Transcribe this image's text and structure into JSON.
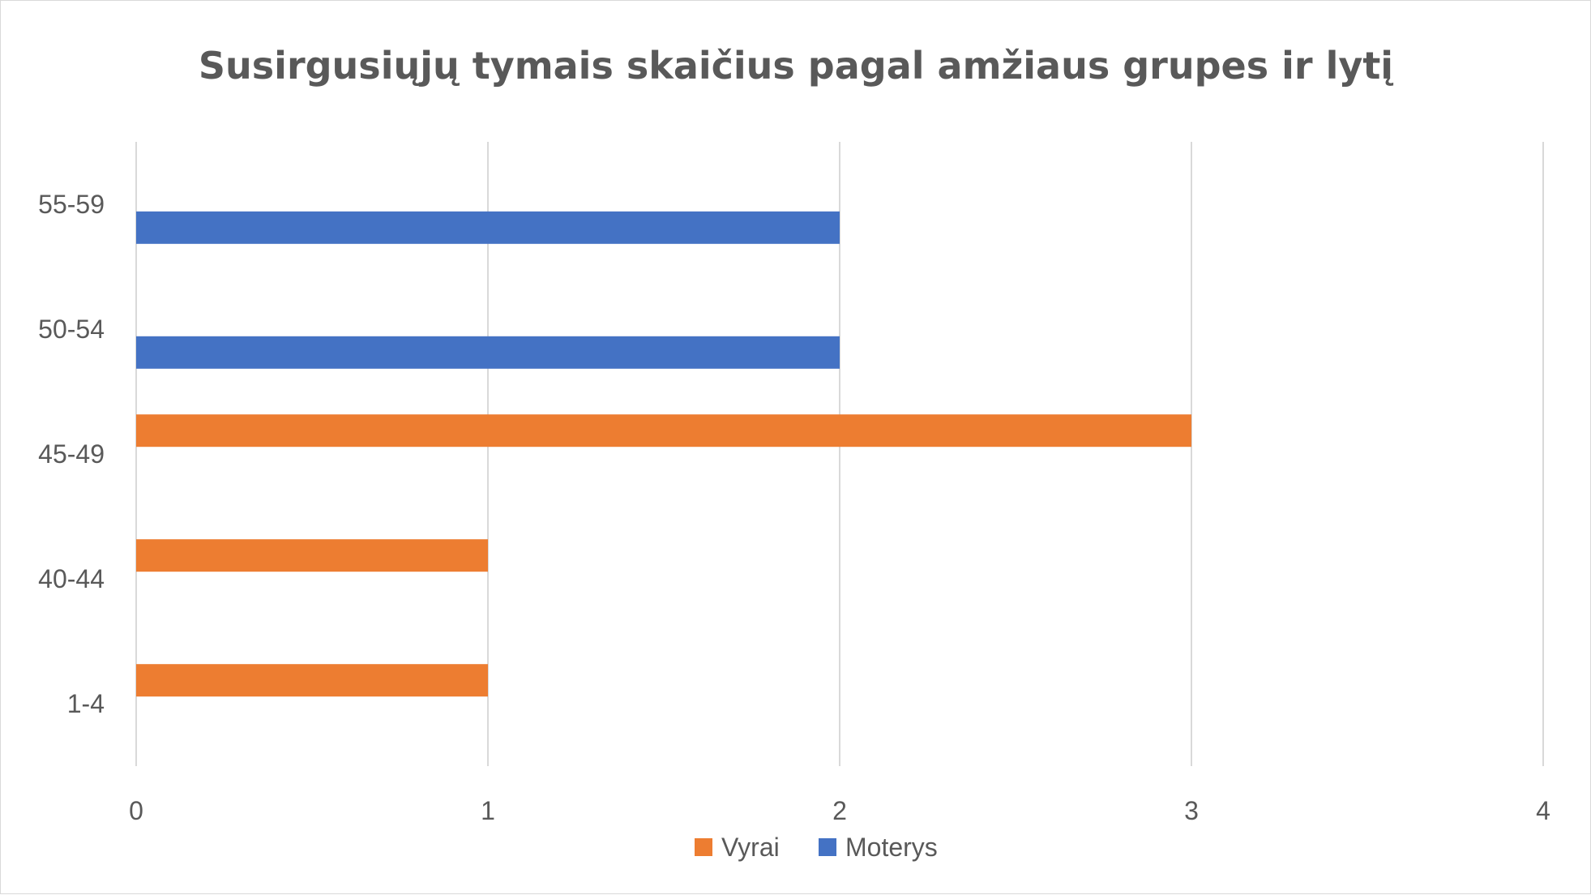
{
  "chart_data": {
    "type": "bar",
    "orientation": "horizontal",
    "title": "Susirgusiųjų tymais skaičius pagal amžiaus grupes ir lytį",
    "xlabel": "",
    "ylabel": "",
    "categories": [
      "1-4",
      "40-44",
      "45-49",
      "50-54",
      "55-59"
    ],
    "series": [
      {
        "name": "Vyrai",
        "color": "#ED7D31",
        "values": [
          1,
          1,
          3,
          0,
          0
        ]
      },
      {
        "name": "Moterys",
        "color": "#4472C4",
        "values": [
          0,
          0,
          0,
          2,
          2
        ]
      }
    ],
    "xlim": [
      0,
      4
    ],
    "x_ticks": [
      "0",
      "1",
      "2",
      "3",
      "4"
    ],
    "grid": true,
    "legend": "bottom"
  }
}
